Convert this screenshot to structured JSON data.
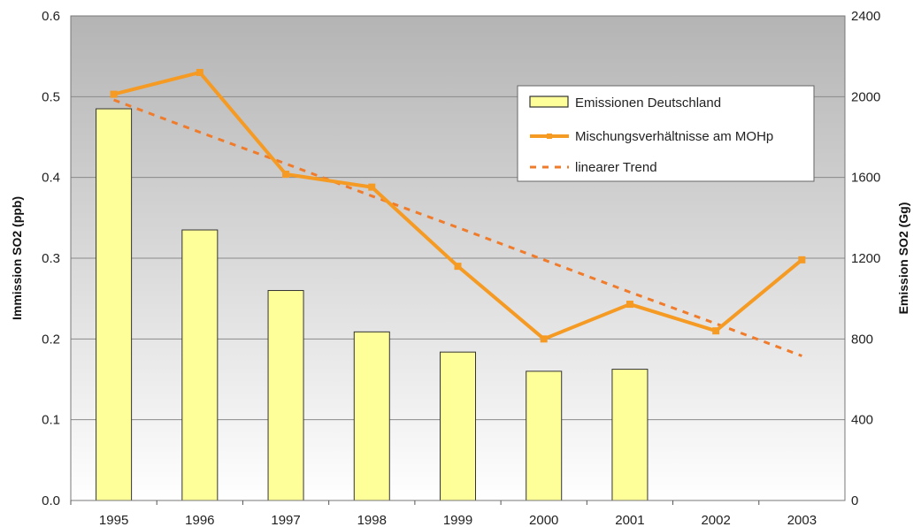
{
  "chart_data": {
    "type": "bar",
    "categories": [
      "1995",
      "1996",
      "1997",
      "1998",
      "1999",
      "2000",
      "2001",
      "2002",
      "2003"
    ],
    "series": [
      {
        "name": "Emissionen Deutschland",
        "type": "bar",
        "axis": "right",
        "values": [
          1940,
          1340,
          1040,
          835,
          735,
          640,
          650,
          null,
          null
        ],
        "color": "#ffff99"
      },
      {
        "name": "Mischungsverhältnisse am MOHp",
        "type": "line",
        "axis": "left",
        "values": [
          0.503,
          0.53,
          0.404,
          0.388,
          0.29,
          0.2,
          0.243,
          0.21,
          0.298
        ],
        "color": "#f59a23"
      },
      {
        "name": "linearer Trend",
        "type": "dashed-line",
        "axis": "left",
        "values": [
          0.496,
          0.456,
          0.417,
          0.377,
          0.338,
          0.298,
          0.258,
          0.219,
          0.179
        ],
        "color": "#f07b2a"
      }
    ],
    "ylabel_left": "Immission SO2 (ppb)",
    "ylabel_right": "Emission SO2 (Gg)",
    "ylim_left": [
      0,
      0.6
    ],
    "ylim_right": [
      0,
      2400
    ],
    "yticks_left": [
      "0.0",
      "0.1",
      "0.2",
      "0.3",
      "0.4",
      "0.5",
      "0.6"
    ],
    "yticks_right": [
      "0",
      "400",
      "800",
      "1200",
      "1600",
      "2000",
      "2400"
    ],
    "grid": true,
    "legend_position": "top-right"
  }
}
